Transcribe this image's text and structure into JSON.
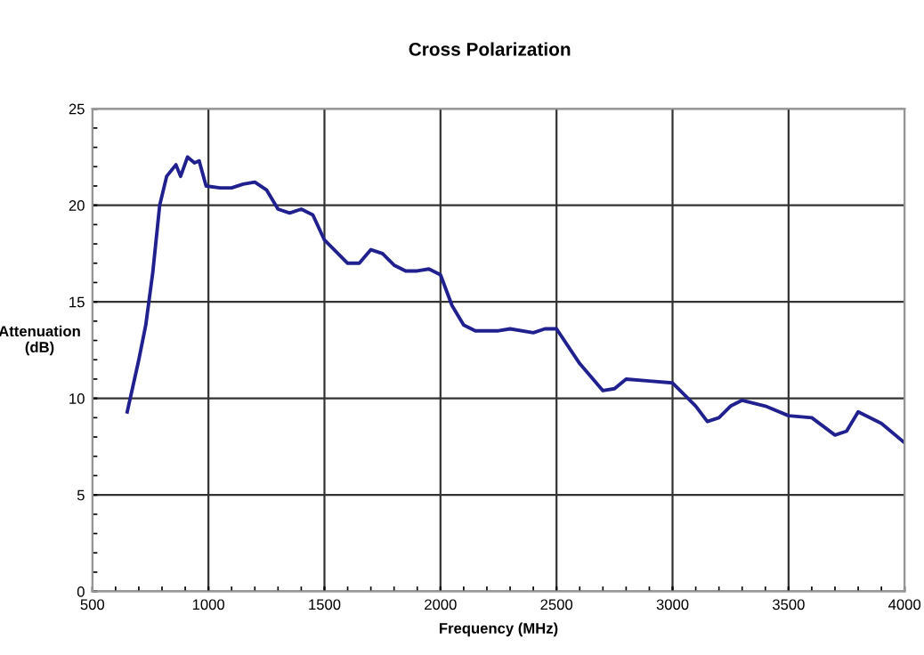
{
  "chart_data": {
    "type": "line",
    "title": "Cross Polarization",
    "xlabel": "Frequency (MHz)",
    "ylabel": "Attenuation\n(dB)",
    "x": [
      650,
      700,
      730,
      760,
      790,
      820,
      860,
      880,
      910,
      940,
      960,
      990,
      1050,
      1100,
      1150,
      1200,
      1250,
      1300,
      1350,
      1400,
      1450,
      1500,
      1600,
      1650,
      1700,
      1750,
      1800,
      1850,
      1900,
      1950,
      2000,
      2050,
      2100,
      2150,
      2250,
      2300,
      2400,
      2450,
      2500,
      2600,
      2700,
      2750,
      2800,
      2900,
      3000,
      3100,
      3150,
      3200,
      3250,
      3300,
      3400,
      3500,
      3600,
      3700,
      3750,
      3800,
      3900,
      4000
    ],
    "series": [
      {
        "color": "#20208f",
        "values": [
          9.3,
          12,
          13.8,
          16.5,
          20,
          21.5,
          22.1,
          21.5,
          22.5,
          22.2,
          22.3,
          21,
          20.9,
          20.9,
          21.1,
          21.2,
          20.8,
          19.8,
          19.6,
          19.8,
          19.5,
          18.2,
          17,
          17,
          17.7,
          17.5,
          16.9,
          16.6,
          16.6,
          16.7,
          16.4,
          14.8,
          13.8,
          13.5,
          13.5,
          13.6,
          13.4,
          13.6,
          13.6,
          11.8,
          10.4,
          10.5,
          11,
          10.9,
          10.8,
          9.6,
          8.8,
          9.0,
          9.6,
          9.9,
          9.6,
          9.1,
          9.0,
          8.1,
          8.3,
          9.3,
          8.7,
          7.7
        ]
      }
    ],
    "xlim": [
      500,
      4000
    ],
    "ylim": [
      0,
      25
    ],
    "xticks": [
      500,
      1000,
      1500,
      2000,
      2500,
      3000,
      3500,
      4000
    ],
    "yticks": [
      0,
      5,
      10,
      15,
      20,
      25
    ],
    "grid": true,
    "legend": false,
    "marker": "none",
    "line_style": "solid"
  }
}
